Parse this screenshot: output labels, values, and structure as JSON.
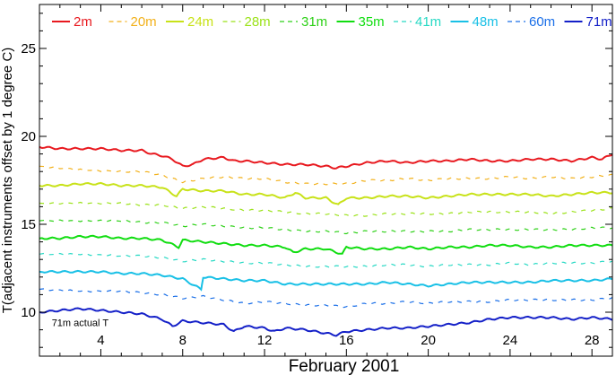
{
  "chart_data": {
    "type": "line",
    "xlabel": "February 2001",
    "ylabel": "T(adjacent instruments offset by 1 degree C)",
    "xlim": [
      1,
      29
    ],
    "ylim": [
      7.5,
      27.5
    ],
    "xticks": [
      4,
      8,
      12,
      16,
      20,
      24,
      28
    ],
    "yticks": [
      10,
      15,
      20,
      25
    ],
    "annotation": "71m actual T",
    "legend_position": "top",
    "series": [
      {
        "name": "2m",
        "color": "#e8191f",
        "dash": "solid",
        "level": 18.8
      },
      {
        "name": "20m",
        "color": "#f2b11b",
        "dash": "dashed",
        "level": 17.6
      },
      {
        "name": "24m",
        "color": "#c8e219",
        "dash": "solid",
        "level": 16.8
      },
      {
        "name": "28m",
        "color": "#9be219",
        "dash": "dashed",
        "level": 15.7
      },
      {
        "name": "31m",
        "color": "#2fd119",
        "dash": "dashed",
        "level": 14.7
      },
      {
        "name": "35m",
        "color": "#10dd10",
        "dash": "solid",
        "level": 13.8
      },
      {
        "name": "41m",
        "color": "#27d9c4",
        "dash": "dashed",
        "level": 12.8
      },
      {
        "name": "48m",
        "color": "#19c0e6",
        "dash": "solid",
        "level": 11.8
      },
      {
        "name": "60m",
        "color": "#1a6fe8",
        "dash": "dashed",
        "level": 10.8
      },
      {
        "name": "71m",
        "color": "#1420c8",
        "dash": "solid",
        "level": 9.6
      }
    ],
    "points": {
      "2m": [
        [
          1,
          19.4
        ],
        [
          2,
          19.3
        ],
        [
          3,
          19.3
        ],
        [
          4,
          19.3
        ],
        [
          5,
          19.2
        ],
        [
          6,
          19.2
        ],
        [
          6.5,
          19.0
        ],
        [
          7,
          18.9
        ],
        [
          7.5,
          18.7
        ],
        [
          8,
          18.3
        ],
        [
          8.5,
          18.4
        ],
        [
          9,
          18.7
        ],
        [
          10,
          18.8
        ],
        [
          10.5,
          18.6
        ],
        [
          11,
          18.6
        ],
        [
          12,
          18.5
        ],
        [
          13,
          18.4
        ],
        [
          14,
          18.4
        ],
        [
          15,
          18.3
        ],
        [
          15.5,
          18.2
        ],
        [
          16,
          18.3
        ],
        [
          17,
          18.5
        ],
        [
          18,
          18.6
        ],
        [
          19,
          18.5
        ],
        [
          20,
          18.6
        ],
        [
          21,
          18.6
        ],
        [
          22,
          18.7
        ],
        [
          23,
          18.6
        ],
        [
          24,
          18.6
        ],
        [
          25,
          18.7
        ],
        [
          26,
          18.7
        ],
        [
          27,
          18.6
        ],
        [
          28,
          18.8
        ],
        [
          28.5,
          18.7
        ],
        [
          29,
          19.0
        ]
      ],
      "20m": [
        [
          1,
          18.3
        ],
        [
          3,
          18.1
        ],
        [
          5,
          18.0
        ],
        [
          6,
          18.0
        ],
        [
          7,
          17.8
        ],
        [
          8,
          17.4
        ],
        [
          9,
          17.6
        ],
        [
          10,
          17.7
        ],
        [
          11,
          17.6
        ],
        [
          12,
          17.6
        ],
        [
          13,
          17.4
        ],
        [
          14,
          17.3
        ],
        [
          15,
          17.3
        ],
        [
          16,
          17.3
        ],
        [
          17,
          17.5
        ],
        [
          18,
          17.5
        ],
        [
          19,
          17.6
        ],
        [
          20,
          17.5
        ],
        [
          21,
          17.6
        ],
        [
          22,
          17.6
        ],
        [
          23,
          17.6
        ],
        [
          24,
          17.7
        ],
        [
          25,
          17.6
        ],
        [
          26,
          17.7
        ],
        [
          27,
          17.6
        ],
        [
          28,
          17.7
        ],
        [
          29,
          17.8
        ]
      ],
      "24m": [
        [
          1,
          17.2
        ],
        [
          2,
          17.2
        ],
        [
          3,
          17.3
        ],
        [
          4,
          17.3
        ],
        [
          5,
          17.2
        ],
        [
          6,
          17.2
        ],
        [
          7,
          17.1
        ],
        [
          7.7,
          16.6
        ],
        [
          8,
          17.0
        ],
        [
          9,
          16.9
        ],
        [
          10,
          16.9
        ],
        [
          11,
          16.7
        ],
        [
          12,
          16.7
        ],
        [
          13,
          16.5
        ],
        [
          13.5,
          16.8
        ],
        [
          14,
          16.5
        ],
        [
          15,
          16.5
        ],
        [
          15.6,
          16.1
        ],
        [
          16,
          16.5
        ],
        [
          17,
          16.5
        ],
        [
          18,
          16.6
        ],
        [
          19,
          16.6
        ],
        [
          20,
          16.5
        ],
        [
          21,
          16.6
        ],
        [
          22,
          16.7
        ],
        [
          23,
          16.7
        ],
        [
          24,
          16.7
        ],
        [
          25,
          16.7
        ],
        [
          26,
          16.6
        ],
        [
          27,
          16.7
        ],
        [
          28,
          16.8
        ],
        [
          29,
          16.8
        ]
      ],
      "28m": [
        [
          1,
          16.2
        ],
        [
          3,
          16.2
        ],
        [
          5,
          16.2
        ],
        [
          6,
          16.1
        ],
        [
          7,
          16.1
        ],
        [
          8,
          15.9
        ],
        [
          9,
          16.0
        ],
        [
          10,
          15.9
        ],
        [
          11,
          15.8
        ],
        [
          12,
          15.8
        ],
        [
          13,
          15.7
        ],
        [
          14,
          15.6
        ],
        [
          15,
          15.6
        ],
        [
          16,
          15.5
        ],
        [
          17,
          15.5
        ],
        [
          18,
          15.6
        ],
        [
          19,
          15.6
        ],
        [
          20,
          15.6
        ],
        [
          21,
          15.6
        ],
        [
          22,
          15.7
        ],
        [
          23,
          15.7
        ],
        [
          24,
          15.7
        ],
        [
          25,
          15.7
        ],
        [
          26,
          15.6
        ],
        [
          27,
          15.7
        ],
        [
          28,
          15.8
        ],
        [
          29,
          15.9
        ]
      ],
      "31m": [
        [
          1,
          15.2
        ],
        [
          3,
          15.2
        ],
        [
          5,
          15.2
        ],
        [
          6,
          15.1
        ],
        [
          7,
          15.1
        ],
        [
          8,
          14.9
        ],
        [
          9,
          15.0
        ],
        [
          10,
          14.9
        ],
        [
          11,
          14.8
        ],
        [
          12,
          14.8
        ],
        [
          13,
          14.7
        ],
        [
          14,
          14.6
        ],
        [
          15,
          14.6
        ],
        [
          16,
          14.5
        ],
        [
          17,
          14.6
        ],
        [
          18,
          14.6
        ],
        [
          19,
          14.6
        ],
        [
          20,
          14.6
        ],
        [
          21,
          14.6
        ],
        [
          22,
          14.7
        ],
        [
          23,
          14.7
        ],
        [
          24,
          14.7
        ],
        [
          25,
          14.7
        ],
        [
          26,
          14.7
        ],
        [
          27,
          14.7
        ],
        [
          28,
          14.8
        ],
        [
          29,
          14.8
        ]
      ],
      "35m": [
        [
          1,
          14.2
        ],
        [
          2,
          14.2
        ],
        [
          3,
          14.3
        ],
        [
          4,
          14.3
        ],
        [
          5,
          14.2
        ],
        [
          6,
          14.2
        ],
        [
          7,
          14.1
        ],
        [
          7.8,
          13.7
        ],
        [
          8,
          14.1
        ],
        [
          9,
          14.0
        ],
        [
          10,
          13.9
        ],
        [
          11,
          13.8
        ],
        [
          12,
          13.8
        ],
        [
          13,
          13.7
        ],
        [
          13.4,
          13.4
        ],
        [
          14,
          13.6
        ],
        [
          15,
          13.6
        ],
        [
          15.8,
          13.3
        ],
        [
          16,
          13.7
        ],
        [
          17,
          13.6
        ],
        [
          18,
          13.6
        ],
        [
          19,
          13.7
        ],
        [
          20,
          13.6
        ],
        [
          21,
          13.7
        ],
        [
          22,
          13.7
        ],
        [
          23,
          13.8
        ],
        [
          24,
          13.8
        ],
        [
          25,
          13.7
        ],
        [
          26,
          13.7
        ],
        [
          27,
          13.8
        ],
        [
          28,
          13.8
        ],
        [
          29,
          13.8
        ]
      ],
      "41m": [
        [
          1,
          13.3
        ],
        [
          3,
          13.3
        ],
        [
          5,
          13.2
        ],
        [
          6,
          13.2
        ],
        [
          7,
          13.1
        ],
        [
          8,
          12.9
        ],
        [
          9,
          13.0
        ],
        [
          10,
          12.9
        ],
        [
          11,
          12.8
        ],
        [
          12,
          12.8
        ],
        [
          13,
          12.7
        ],
        [
          14,
          12.6
        ],
        [
          15,
          12.6
        ],
        [
          16,
          12.6
        ],
        [
          17,
          12.6
        ],
        [
          18,
          12.7
        ],
        [
          19,
          12.7
        ],
        [
          20,
          12.6
        ],
        [
          21,
          12.7
        ],
        [
          22,
          12.7
        ],
        [
          23,
          12.7
        ],
        [
          24,
          12.8
        ],
        [
          25,
          12.7
        ],
        [
          26,
          12.8
        ],
        [
          27,
          12.8
        ],
        [
          28,
          12.8
        ],
        [
          29,
          12.9
        ]
      ],
      "48m": [
        [
          1,
          12.3
        ],
        [
          2,
          12.3
        ],
        [
          3,
          12.3
        ],
        [
          4,
          12.3
        ],
        [
          5,
          12.2
        ],
        [
          6,
          12.2
        ],
        [
          7,
          12.1
        ],
        [
          8,
          11.9
        ],
        [
          8.9,
          11.3
        ],
        [
          9,
          12.0
        ],
        [
          10,
          11.9
        ],
        [
          11,
          11.8
        ],
        [
          12,
          11.8
        ],
        [
          13,
          11.6
        ],
        [
          14,
          11.6
        ],
        [
          15,
          11.6
        ],
        [
          16,
          11.6
        ],
        [
          17,
          11.6
        ],
        [
          18,
          11.7
        ],
        [
          19,
          11.6
        ],
        [
          20,
          11.5
        ],
        [
          21,
          11.6
        ],
        [
          22,
          11.7
        ],
        [
          23,
          11.7
        ],
        [
          24,
          11.7
        ],
        [
          25,
          11.7
        ],
        [
          26,
          11.8
        ],
        [
          27,
          11.8
        ],
        [
          28,
          11.8
        ],
        [
          29,
          11.9
        ]
      ],
      "60m": [
        [
          1,
          11.3
        ],
        [
          3,
          11.2
        ],
        [
          5,
          11.2
        ],
        [
          6,
          11.1
        ],
        [
          7,
          11.0
        ],
        [
          8,
          10.8
        ],
        [
          9,
          10.9
        ],
        [
          10,
          10.7
        ],
        [
          11,
          10.5
        ],
        [
          12,
          10.6
        ],
        [
          13,
          10.5
        ],
        [
          14,
          10.4
        ],
        [
          15,
          10.4
        ],
        [
          16,
          10.3
        ],
        [
          17,
          10.5
        ],
        [
          18,
          10.5
        ],
        [
          19,
          10.6
        ],
        [
          20,
          10.5
        ],
        [
          21,
          10.6
        ],
        [
          22,
          10.6
        ],
        [
          23,
          10.6
        ],
        [
          24,
          10.7
        ],
        [
          25,
          10.7
        ],
        [
          26,
          10.7
        ],
        [
          27,
          10.7
        ],
        [
          28,
          10.7
        ],
        [
          29,
          10.8
        ]
      ],
      "71m": [
        [
          1,
          10.0
        ],
        [
          2,
          10.1
        ],
        [
          3,
          10.2
        ],
        [
          4,
          10.1
        ],
        [
          5,
          10.0
        ],
        [
          6,
          9.9
        ],
        [
          7,
          9.6
        ],
        [
          7.5,
          9.2
        ],
        [
          8,
          9.5
        ],
        [
          9,
          9.4
        ],
        [
          10,
          9.3
        ],
        [
          10.5,
          8.9
        ],
        [
          11,
          9.2
        ],
        [
          12,
          9.1
        ],
        [
          12.5,
          8.9
        ],
        [
          13,
          9.1
        ],
        [
          14,
          9.0
        ],
        [
          15,
          8.8
        ],
        [
          15.5,
          8.7
        ],
        [
          16,
          8.9
        ],
        [
          17,
          9.0
        ],
        [
          18,
          9.1
        ],
        [
          19,
          9.1
        ],
        [
          20,
          9.2
        ],
        [
          21,
          9.3
        ],
        [
          22,
          9.4
        ],
        [
          23,
          9.6
        ],
        [
          24,
          9.7
        ],
        [
          25,
          9.7
        ],
        [
          26,
          9.7
        ],
        [
          27,
          9.6
        ],
        [
          28,
          9.7
        ],
        [
          29,
          9.6
        ]
      ]
    }
  }
}
